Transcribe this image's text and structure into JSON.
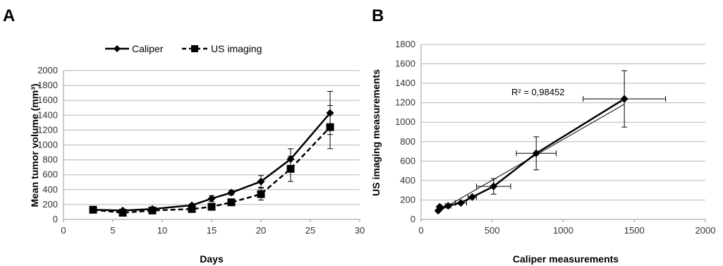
{
  "chart_data": [
    {
      "panel": "A",
      "type": "line",
      "xlabel": "Days",
      "ylabel": "Mean tumor volume (mm³)",
      "xlim": [
        0,
        30
      ],
      "ylim": [
        0,
        2000
      ],
      "xticks": [
        0,
        5,
        10,
        15,
        20,
        25,
        30
      ],
      "yticks": [
        0,
        200,
        400,
        600,
        800,
        1000,
        1200,
        1400,
        1600,
        1800,
        2000
      ],
      "grid": "horizontal",
      "legend": "top",
      "series": [
        {
          "name": "Caliper",
          "marker": "diamond",
          "line": "solid",
          "x": [
            3,
            6,
            9,
            13,
            15,
            17,
            20,
            23,
            27
          ],
          "y": [
            130,
            120,
            140,
            190,
            280,
            360,
            510,
            810,
            1430
          ],
          "err": [
            0,
            0,
            0,
            20,
            40,
            30,
            80,
            140,
            290
          ]
        },
        {
          "name": "US imaging",
          "marker": "square",
          "line": "dashed",
          "x": [
            3,
            6,
            9,
            13,
            15,
            17,
            20,
            23,
            27
          ],
          "y": [
            130,
            90,
            120,
            140,
            170,
            230,
            340,
            680,
            1240
          ],
          "err": [
            0,
            0,
            0,
            0,
            0,
            0,
            80,
            170,
            290
          ]
        }
      ]
    },
    {
      "panel": "B",
      "type": "scatter",
      "xlabel": "Caliper measurements",
      "ylabel": "US imaging measurements",
      "xlim": [
        0,
        2000
      ],
      "ylim": [
        0,
        1800
      ],
      "xticks": [
        0,
        500,
        1000,
        1500,
        2000
      ],
      "yticks": [
        0,
        200,
        400,
        600,
        800,
        1000,
        1200,
        1400,
        1600,
        1800
      ],
      "grid": "horizontal",
      "annotation": "R² = 0,98452",
      "x": [
        120,
        130,
        140,
        190,
        280,
        360,
        510,
        810,
        1430
      ],
      "y": [
        90,
        130,
        120,
        140,
        170,
        230,
        340,
        680,
        1240
      ],
      "xerr": [
        0,
        0,
        0,
        20,
        40,
        30,
        120,
        140,
        290
      ],
      "yerr": [
        0,
        0,
        0,
        0,
        0,
        0,
        80,
        170,
        290
      ],
      "trendline": [
        [
          110,
          75
        ],
        [
          1430,
          1185
        ]
      ]
    }
  ]
}
